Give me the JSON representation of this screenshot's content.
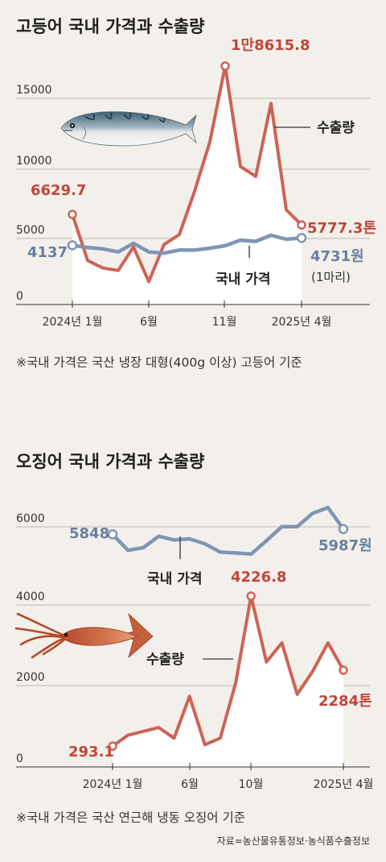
{
  "chart_data": [
    {
      "type": "line",
      "title": "고등어 국내 가격과 수출량",
      "y_ticks": [
        "15000",
        "10000",
        "5000",
        "0"
      ],
      "ylim": [
        0,
        19000
      ],
      "x_tick_labels": [
        "2024년 1월",
        "6월",
        "11월",
        "2025년 4월"
      ],
      "x": [
        "2024-01",
        "2024-02",
        "2024-03",
        "2024-04",
        "2024-05",
        "2024-06",
        "2024-07",
        "2024-08",
        "2024-09",
        "2024-10",
        "2024-11",
        "2024-12",
        "2025-01",
        "2025-02",
        "2025-03",
        "2025-04"
      ],
      "series": [
        {
          "name": "수출량",
          "values": [
            6629.7,
            2900,
            2300,
            2100,
            4000,
            1200,
            4200,
            5000,
            8500,
            12500,
            18615.8,
            10500,
            9700,
            15600,
            7000,
            5777.3
          ],
          "color": "#cc6455"
        },
        {
          "name": "국내 가격",
          "values": [
            4137,
            3950,
            3850,
            3600,
            4300,
            3600,
            3500,
            3750,
            3750,
            3900,
            4100,
            4550,
            4450,
            4950,
            4620,
            4731
          ],
          "color": "#7f95b5"
        }
      ],
      "annotations": {
        "export_start": "6629.7",
        "export_peak": "1만8615.8",
        "export_end": "5777.3톤",
        "price_start": "4137",
        "price_end": "4731원",
        "price_unit": "(1마리)"
      },
      "note": "※국내 가격은 국산 냉장 대형(400g 이상) 고등어 기준"
    },
    {
      "type": "line",
      "title": "오징어 국내 가격과 수출량",
      "y_ticks": [
        "6000",
        "4000",
        "2000",
        "0"
      ],
      "ylim": [
        0,
        6800
      ],
      "x_tick_labels": [
        "2024년 1월",
        "6월",
        "10월",
        "2025년 4월"
      ],
      "x": [
        "2024-01",
        "2024-02",
        "2024-03",
        "2024-04",
        "2024-05",
        "2024-06",
        "2024-07",
        "2024-08",
        "2024-09",
        "2024-10",
        "2024-11",
        "2024-12",
        "2025-01",
        "2025-02",
        "2025-03",
        "2025-04"
      ],
      "series": [
        {
          "name": "수출량",
          "values": [
            293.1,
            580,
            680,
            780,
            500,
            1600,
            330,
            500,
            1950,
            4226.8,
            2500,
            3000,
            1650,
            2250,
            3000,
            2284
          ],
          "color": "#cc6455"
        },
        {
          "name": "국내 가격",
          "values": [
            5848,
            5430,
            5500,
            5800,
            5700,
            5730,
            5600,
            5380,
            5360,
            5330,
            5680,
            6050,
            6050,
            6400,
            6550,
            5987
          ],
          "color": "#7f95b5"
        }
      ],
      "annotations": {
        "export_start": "293.1",
        "export_peak": "4226.8",
        "export_end": "2284톤",
        "price_start": "5848",
        "price_end": "5987원"
      },
      "note": "※국내 가격은 국산 연근해 냉동 오징어 기준"
    }
  ],
  "source": "자료=농산물유통정보·농식품수출정보"
}
